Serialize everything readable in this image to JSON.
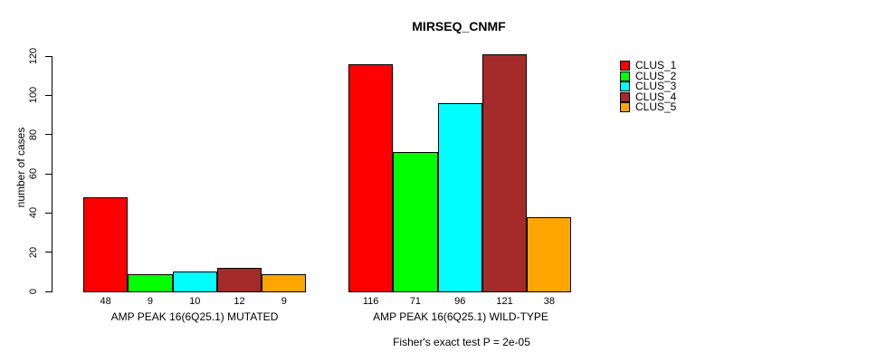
{
  "chart_data": {
    "type": "bar",
    "title": "MIRSEQ_CNMF",
    "ylabel": "number of cases",
    "xlabel": "",
    "ylim": [
      0,
      120
    ],
    "yticks": [
      0,
      20,
      40,
      60,
      80,
      100,
      120
    ],
    "categories": [
      "AMP PEAK 16(6Q25.1) MUTATED",
      "AMP PEAK 16(6Q25.1) WILD-TYPE"
    ],
    "series": [
      {
        "name": "CLUS_1",
        "color": "#FF0000",
        "values": [
          48,
          116
        ]
      },
      {
        "name": "CLUS_2",
        "color": "#00FF00",
        "values": [
          9,
          71
        ]
      },
      {
        "name": "CLUS_3",
        "color": "#00FFFF",
        "values": [
          10,
          96
        ]
      },
      {
        "name": "CLUS_4",
        "color": "#A52A2A",
        "values": [
          12,
          121
        ]
      },
      {
        "name": "CLUS_5",
        "color": "#FFA500",
        "values": [
          9,
          38
        ]
      }
    ],
    "bar_value_labels": {
      "AMP PEAK 16(6Q25.1) MUTATED": [
        48,
        9,
        10,
        12,
        9
      ],
      "AMP PEAK 16(6Q25.1) WILD-TYPE": [
        116,
        71,
        96,
        121,
        38
      ]
    },
    "legend": {
      "position": "right",
      "entries": [
        "CLUS_1",
        "CLUS_2",
        "CLUS_3",
        "CLUS_4",
        "CLUS_5"
      ]
    },
    "footnote": "Fisher's exact test P = 2e-05",
    "grid": false,
    "bar_border_color": "#000000",
    "text_color": "#000000",
    "background_color": "#FFFFFF"
  }
}
